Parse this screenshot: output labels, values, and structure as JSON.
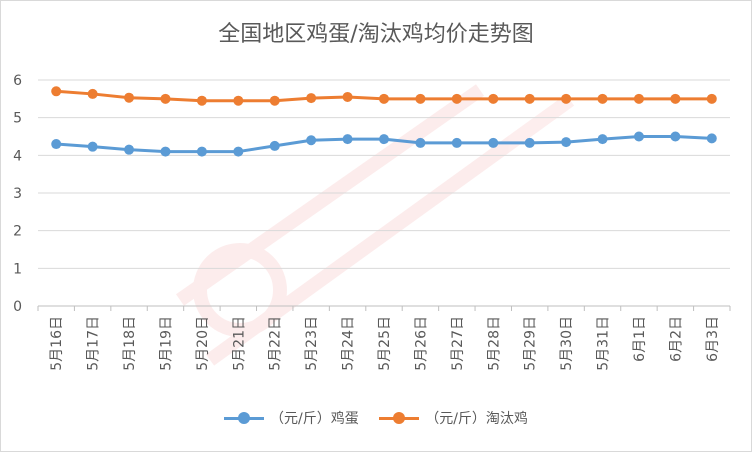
{
  "chart_data": {
    "type": "line",
    "title": "全国地区鸡蛋/淘汰鸡均价走势图",
    "xlabel": "",
    "ylabel": "",
    "ylim": [
      0,
      6
    ],
    "yticks": [
      "0",
      "1",
      "2",
      "3",
      "4",
      "5",
      "6"
    ],
    "grid": true,
    "legend_position": "bottom",
    "categories": [
      "5月16日",
      "5月17日",
      "5月18日",
      "5月19日",
      "5月20日",
      "5月21日",
      "5月22日",
      "5月23日",
      "5月24日",
      "5月25日",
      "5月26日",
      "5月27日",
      "5月28日",
      "5月29日",
      "5月30日",
      "5月31日",
      "6月1日",
      "6月2日",
      "6月3日"
    ],
    "series": [
      {
        "name": "（元/斤）鸡蛋",
        "color": "#5b9bd5",
        "values": [
          4.3,
          4.23,
          4.15,
          4.1,
          4.1,
          4.1,
          4.25,
          4.4,
          4.43,
          4.43,
          4.33,
          4.33,
          4.33,
          4.33,
          4.35,
          4.43,
          4.5,
          4.5,
          4.45
        ]
      },
      {
        "name": "（元/斤）淘汰鸡",
        "color": "#ed7d31",
        "values": [
          5.7,
          5.63,
          5.53,
          5.5,
          5.45,
          5.45,
          5.45,
          5.52,
          5.55,
          5.5,
          5.5,
          5.5,
          5.5,
          5.5,
          5.5,
          5.5,
          5.5,
          5.5,
          5.5
        ]
      }
    ]
  }
}
